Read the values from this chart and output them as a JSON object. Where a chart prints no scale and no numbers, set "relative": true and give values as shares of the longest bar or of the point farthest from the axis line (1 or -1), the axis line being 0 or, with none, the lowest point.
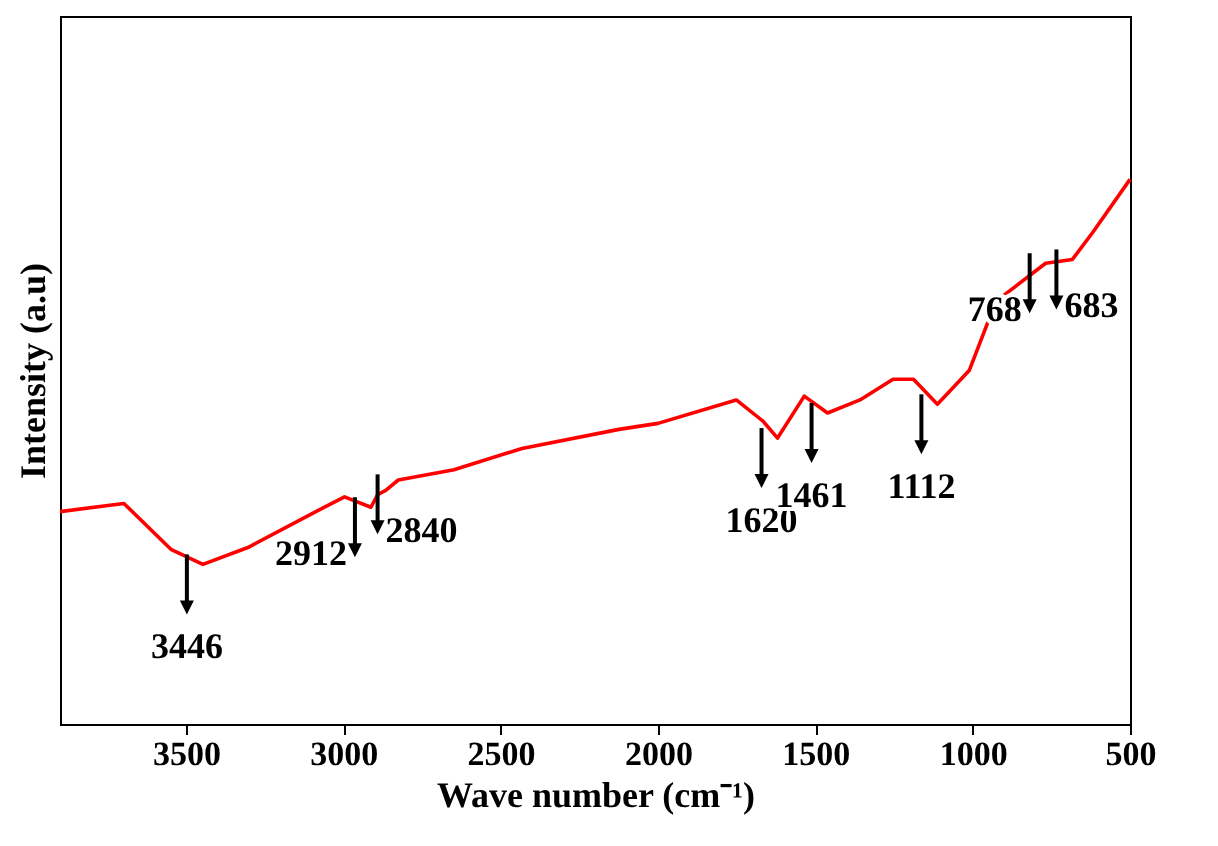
{
  "chart_data": {
    "type": "line",
    "relative": true,
    "xlabel": "Wave number (cm⁻¹)",
    "ylabel": "Intensity (a.u)",
    "xlim": [
      3900,
      500
    ],
    "xticks": [
      3500,
      3000,
      2500,
      2000,
      1500,
      1000,
      500
    ],
    "grid": false,
    "marker": "none",
    "line_style": "solid",
    "series": [
      {
        "color": "#ff0000",
        "x": [
          3900,
          3697,
          3546,
          3446,
          3303,
          3087,
          2996,
          2912,
          2891,
          2865,
          2825,
          2648,
          2432,
          2124,
          2000,
          1751,
          1666,
          1620,
          1535,
          1461,
          1358,
          1253,
          1188,
          1112,
          1011,
          926,
          795,
          768,
          683,
          618,
          500
        ],
        "values": [
          0.39,
          0.405,
          0.32,
          0.293,
          0.324,
          0.39,
          0.417,
          0.398,
          0.421,
          0.429,
          0.448,
          0.467,
          0.506,
          0.541,
          0.552,
          0.595,
          0.556,
          0.525,
          0.602,
          0.571,
          0.595,
          0.633,
          0.633,
          0.587,
          0.649,
          0.776,
          0.834,
          0.846,
          0.853,
          0.903,
          1.0
        ]
      }
    ],
    "annotations": [
      {
        "text": "3446",
        "x": 3446,
        "y": 0.293
      },
      {
        "text": "2912",
        "x": 2912,
        "y": 0.398
      },
      {
        "text": "2840",
        "x": 2840,
        "y": 0.44
      },
      {
        "text": "1620",
        "x": 1620,
        "y": 0.525
      },
      {
        "text": "1461",
        "x": 1461,
        "y": 0.571
      },
      {
        "text": "1112",
        "x": 1112,
        "y": 0.587
      },
      {
        "text": "768",
        "x": 768,
        "y": 0.846
      },
      {
        "text": "683",
        "x": 683,
        "y": 0.853
      }
    ]
  }
}
